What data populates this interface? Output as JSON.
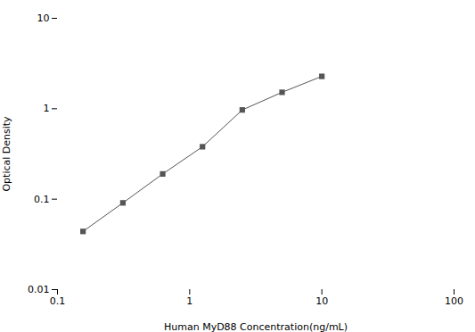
{
  "chart_data": {
    "type": "line",
    "x": [
      0.156,
      0.3125,
      0.625,
      1.25,
      2.5,
      5.0,
      10.0
    ],
    "values": [
      0.044,
      0.091,
      0.19,
      0.38,
      0.97,
      1.52,
      2.28
    ],
    "xlabel": "Human MyD88 Concentration(ng/mL)",
    "ylabel": "Optical Density",
    "xlim": [
      0.1,
      100
    ],
    "ylim": [
      0.01,
      10
    ],
    "xticks": [
      0.1,
      1,
      10,
      100
    ],
    "yticks": [
      0.01,
      0.1,
      1,
      10
    ],
    "log": true,
    "grid": false,
    "color": "#555555",
    "marker": "square"
  }
}
